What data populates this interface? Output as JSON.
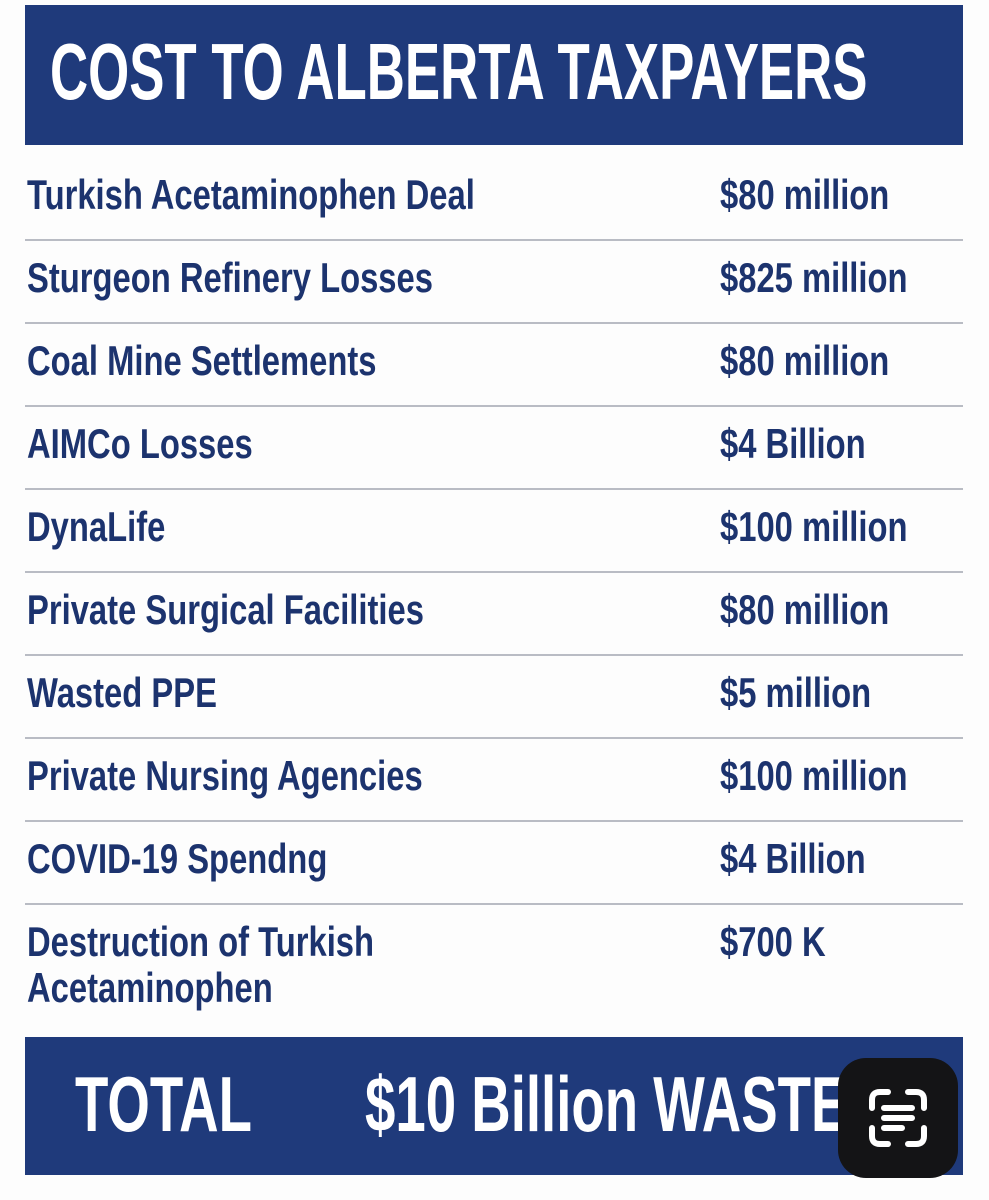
{
  "header": {
    "title": "COST TO ALBERTA TAXPAYERS"
  },
  "rows": [
    {
      "label": "Turkish Acetaminophen Deal",
      "amount": "$80 million"
    },
    {
      "label": "Sturgeon Refinery Losses",
      "amount": "$825 million"
    },
    {
      "label": "Coal Mine Settlements",
      "amount": "$80 million"
    },
    {
      "label": "AIMCo Losses",
      "amount": "$4 Billion"
    },
    {
      "label": "DynaLife",
      "amount": "$100 million"
    },
    {
      "label": "Private Surgical Facilities",
      "amount": "$80 million"
    },
    {
      "label": "Wasted PPE",
      "amount": "$5 million"
    },
    {
      "label": "Private Nursing Agencies",
      "amount": "$100 million"
    },
    {
      "label": "COVID-19 Spendng",
      "amount": "$4 Billion"
    },
    {
      "label": "Destruction of Turkish Acetaminophen",
      "amount": "$700 K"
    }
  ],
  "total": {
    "label": "TOTAL",
    "value": "$10 Billion WASTE"
  }
}
